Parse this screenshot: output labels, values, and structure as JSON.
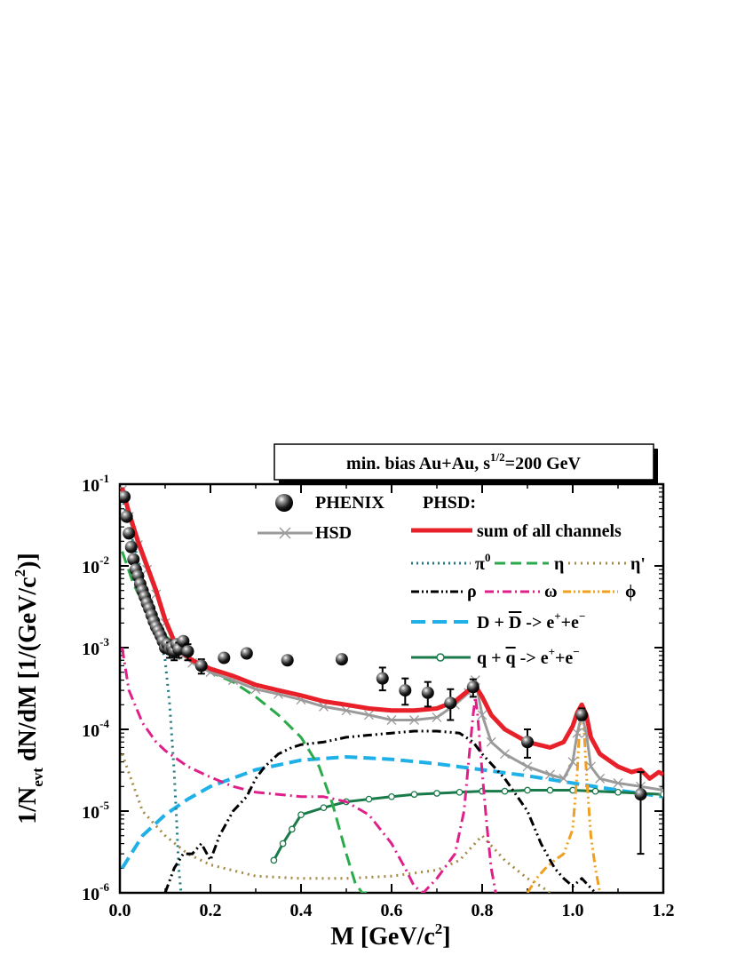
{
  "chart_data": {
    "type": "line",
    "title": "min. bias Au+Au,  s^1/2=200 GeV",
    "title_parts": {
      "pre": "min. bias Au+Au,  s",
      "sup": "1/2",
      "post": "=200 GeV"
    },
    "xlabel": "M  [GeV/c²]",
    "xlabel_parts": {
      "pre": "M  [GeV/c",
      "sup": "2",
      "post": "]"
    },
    "ylabel": "1/N_evt dN/dM  [1/(GeV/c²)]",
    "ylabel_parts": {
      "a": "1/N",
      "sub": "evt",
      "b": " dN/dM  [1/(GeV/c",
      "sup": "2",
      "c": ")]"
    },
    "xlim": [
      0.0,
      1.2
    ],
    "ylim": [
      1e-06,
      0.1
    ],
    "yscale": "log",
    "xticks": [
      "0.0",
      "0.2",
      "0.4",
      "0.6",
      "0.8",
      "1.0",
      "1.2"
    ],
    "yticks": [
      {
        "base": "10",
        "exp": "-1"
      },
      {
        "base": "10",
        "exp": "-2"
      },
      {
        "base": "10",
        "exp": "-3"
      },
      {
        "base": "10",
        "exp": "-4"
      },
      {
        "base": "10",
        "exp": "-5"
      },
      {
        "base": "10",
        "exp": "-6"
      }
    ],
    "grid": false,
    "legend_placement": "top-right",
    "legend": {
      "phenix": "PHENIX",
      "hsd": "HSD",
      "phsd_header": "PHSD:",
      "sum": "sum of all channels",
      "pi0": {
        "base": "π",
        "sup": "0"
      },
      "eta": "η",
      "etap": "η'",
      "rho": "ρ",
      "omega": "ω",
      "phi": "ϕ",
      "dd": {
        "a": "D + ",
        "bar": "D",
        "b": " -> e",
        "sup1": "+",
        "c": "+e",
        "sup2": "−"
      },
      "qq": {
        "a": "q + ",
        "bar": "q",
        "b": " -> e",
        "sup1": "+",
        "c": "+e",
        "sup2": "−"
      }
    },
    "series": [
      {
        "key": "sum",
        "name": "sum of all channels",
        "color": "#e8202a",
        "style": "solid",
        "width": 5,
        "x": [
          0.005,
          0.02,
          0.04,
          0.06,
          0.08,
          0.1,
          0.12,
          0.14,
          0.16,
          0.2,
          0.25,
          0.3,
          0.35,
          0.4,
          0.45,
          0.5,
          0.55,
          0.6,
          0.65,
          0.7,
          0.74,
          0.77,
          0.785,
          0.8,
          0.82,
          0.85,
          0.9,
          0.95,
          0.98,
          1.0,
          1.01,
          1.02,
          1.03,
          1.04,
          1.06,
          1.1,
          1.13,
          1.15,
          1.17,
          1.19,
          1.2
        ],
        "y": [
          0.09,
          0.045,
          0.02,
          0.01,
          0.005,
          0.0022,
          0.0012,
          0.00085,
          0.0007,
          0.00055,
          0.00045,
          0.00035,
          0.0003,
          0.00026,
          0.00022,
          0.0002,
          0.00018,
          0.00017,
          0.00017,
          0.00018,
          0.00022,
          0.0003,
          0.00034,
          0.00025,
          0.00015,
          0.0001,
          7e-05,
          6e-05,
          7e-05,
          0.00011,
          0.00016,
          0.0002,
          0.00015,
          8e-05,
          5e-05,
          3.5e-05,
          3e-05,
          3.2e-05,
          2.5e-05,
          3e-05,
          2.8e-05
        ]
      },
      {
        "key": "hsd",
        "name": "HSD",
        "color": "#9a9a9a",
        "style": "solid",
        "width": 3,
        "x": [
          0.005,
          0.02,
          0.04,
          0.06,
          0.08,
          0.1,
          0.12,
          0.14,
          0.16,
          0.2,
          0.25,
          0.3,
          0.35,
          0.4,
          0.45,
          0.5,
          0.55,
          0.6,
          0.65,
          0.7,
          0.74,
          0.77,
          0.785,
          0.8,
          0.82,
          0.85,
          0.9,
          0.95,
          0.98,
          1.0,
          1.01,
          1.02,
          1.03,
          1.04,
          1.06,
          1.1,
          1.15,
          1.2
        ],
        "y": [
          0.085,
          0.04,
          0.018,
          0.009,
          0.0045,
          0.002,
          0.0011,
          0.0008,
          0.00065,
          0.0005,
          0.0004,
          0.00031,
          0.00027,
          0.00023,
          0.00019,
          0.00017,
          0.00015,
          0.00013,
          0.00013,
          0.00014,
          0.0002,
          0.00028,
          0.0004,
          0.00015,
          7e-05,
          5e-05,
          3.5e-05,
          2.8e-05,
          2.5e-05,
          4e-05,
          9e-05,
          0.00015,
          9e-05,
          3.5e-05,
          2.5e-05,
          2.2e-05,
          2e-05,
          1.8e-05
        ]
      },
      {
        "key": "pi0",
        "name": "π0",
        "color": "#1f7a80",
        "style": "dotted",
        "width": 3,
        "x": [
          0.005,
          0.02,
          0.04,
          0.06,
          0.08,
          0.1,
          0.11,
          0.12,
          0.125,
          0.13,
          0.135
        ],
        "y": [
          0.07,
          0.03,
          0.012,
          0.005,
          0.002,
          0.0007,
          0.0002,
          3e-05,
          8e-06,
          2e-06,
          1e-06
        ]
      },
      {
        "key": "eta",
        "name": "η",
        "color": "#2aaa4a",
        "style": "dashed",
        "width": 3,
        "x": [
          0.005,
          0.03,
          0.06,
          0.1,
          0.15,
          0.2,
          0.25,
          0.3,
          0.35,
          0.4,
          0.44,
          0.47,
          0.5,
          0.52,
          0.535,
          0.545
        ],
        "y": [
          0.015,
          0.006,
          0.0028,
          0.0014,
          0.0008,
          0.0005,
          0.00038,
          0.00025,
          0.00015,
          8e-05,
          3.5e-05,
          1.2e-05,
          3e-06,
          1.3e-06,
          1e-06,
          1e-06
        ]
      },
      {
        "key": "etap",
        "name": "η'",
        "color": "#a58a45",
        "style": "dotted",
        "width": 3,
        "x": [
          0.005,
          0.05,
          0.1,
          0.15,
          0.2,
          0.3,
          0.4,
          0.5,
          0.6,
          0.7,
          0.75,
          0.8,
          0.85,
          0.9,
          0.93,
          0.95
        ],
        "y": [
          5e-05,
          1e-05,
          5e-06,
          3e-06,
          2.2e-06,
          1.6e-06,
          1.5e-06,
          1.5e-06,
          1.6e-06,
          1.9e-06,
          2.5e-06,
          5e-06,
          2.5e-06,
          1.5e-06,
          1.2e-06,
          1e-06
        ]
      },
      {
        "key": "rho",
        "name": "ρ",
        "color": "#000000",
        "style": "dashdotdot",
        "width": 3,
        "x": [
          0.1,
          0.12,
          0.14,
          0.16,
          0.18,
          0.2,
          0.22,
          0.25,
          0.28,
          0.3,
          0.32,
          0.35,
          0.38,
          0.4,
          0.45,
          0.5,
          0.55,
          0.6,
          0.65,
          0.7,
          0.75,
          0.78,
          0.8,
          0.85,
          0.9,
          0.93,
          0.96,
          0.98,
          1.0,
          1.02,
          1.05
        ],
        "y": [
          1e-06,
          2e-06,
          3e-06,
          3e-06,
          4e-06,
          2.5e-06,
          5e-06,
          1e-05,
          1.5e-05,
          2.5e-05,
          3.5e-05,
          5e-05,
          6e-05,
          6.5e-05,
          7e-05,
          8e-05,
          8.5e-05,
          9e-05,
          9.5e-05,
          9.5e-05,
          9e-05,
          7e-05,
          5e-05,
          2.5e-05,
          1e-05,
          4e-06,
          2e-06,
          1.5e-06,
          1.2e-06,
          1.5e-06,
          1e-06
        ]
      },
      {
        "key": "omega",
        "name": "ω",
        "color": "#e0208a",
        "style": "dashdot",
        "width": 3,
        "x": [
          0.005,
          0.02,
          0.05,
          0.08,
          0.1,
          0.15,
          0.2,
          0.25,
          0.3,
          0.35,
          0.4,
          0.45,
          0.5,
          0.55,
          0.6,
          0.63,
          0.65,
          0.67,
          0.7,
          0.74,
          0.76,
          0.77,
          0.78,
          0.785,
          0.79,
          0.8,
          0.81,
          0.82,
          0.83
        ],
        "y": [
          0.001,
          0.0003,
          0.00012,
          7e-05,
          5.5e-05,
          3.5e-05,
          2.6e-05,
          2e-05,
          1.7e-05,
          1.6e-05,
          1.5e-05,
          1.5e-05,
          1.3e-05,
          9e-06,
          4e-06,
          2e-06,
          1.2e-06,
          1e-06,
          1.5e-06,
          3e-06,
          1e-05,
          4e-05,
          0.00015,
          0.00025,
          0.00015,
          3e-05,
          7e-06,
          2e-06,
          1e-06
        ]
      },
      {
        "key": "phi",
        "name": "ϕ",
        "color": "#f0a020",
        "style": "dashdotdot",
        "width": 3,
        "x": [
          0.9,
          0.92,
          0.94,
          0.96,
          0.98,
          1.0,
          1.01,
          1.015,
          1.02,
          1.025,
          1.03,
          1.04,
          1.05,
          1.06
        ],
        "y": [
          1e-06,
          1.5e-06,
          2e-06,
          2.5e-06,
          3e-06,
          6e-06,
          3e-05,
          0.0001,
          0.00018,
          0.0001,
          3e-05,
          5e-06,
          2e-06,
          1e-06
        ]
      },
      {
        "key": "dd",
        "name": "D + D -> e+e-",
        "color": "#20b0e8",
        "style": "dashed",
        "width": 4,
        "x": [
          0.005,
          0.05,
          0.1,
          0.15,
          0.2,
          0.3,
          0.4,
          0.5,
          0.6,
          0.7,
          0.8,
          0.9,
          1.0,
          1.1,
          1.2
        ],
        "y": [
          2e-06,
          5e-06,
          9e-06,
          1.4e-05,
          2e-05,
          3.2e-05,
          4.2e-05,
          4.6e-05,
          4.3e-05,
          3.8e-05,
          3.2e-05,
          2.7e-05,
          2.2e-05,
          1.8e-05,
          1.5e-05
        ]
      },
      {
        "key": "qq",
        "name": "q + q -> e+e-",
        "color": "#1a7a4a",
        "style": "solid-markers",
        "width": 3,
        "x": [
          0.34,
          0.36,
          0.38,
          0.4,
          0.45,
          0.5,
          0.55,
          0.6,
          0.65,
          0.7,
          0.75,
          0.8,
          0.85,
          0.9,
          0.95,
          1.0,
          1.05,
          1.1,
          1.15,
          1.2
        ],
        "y": [
          2.5e-06,
          4e-06,
          6e-06,
          9e-06,
          1.1e-05,
          1.3e-05,
          1.4e-05,
          1.5e-05,
          1.6e-05,
          1.65e-05,
          1.7e-05,
          1.75e-05,
          1.75e-05,
          1.8e-05,
          1.8e-05,
          1.8e-05,
          1.75e-05,
          1.7e-05,
          1.65e-05,
          1.6e-05
        ]
      }
    ],
    "phenix_data": {
      "x": [
        0.01,
        0.015,
        0.02,
        0.025,
        0.03,
        0.035,
        0.04,
        0.045,
        0.05,
        0.055,
        0.06,
        0.065,
        0.07,
        0.075,
        0.08,
        0.085,
        0.09,
        0.095,
        0.1,
        0.105,
        0.11,
        0.115,
        0.12,
        0.125,
        0.13,
        0.14,
        0.15,
        0.18,
        0.23,
        0.28,
        0.37,
        0.49,
        0.58,
        0.63,
        0.68,
        0.73,
        0.78,
        0.9,
        1.02,
        1.15
      ],
      "y": [
        0.07,
        0.04,
        0.025,
        0.017,
        0.012,
        0.009,
        0.0075,
        0.006,
        0.005,
        0.0042,
        0.0035,
        0.003,
        0.0025,
        0.0021,
        0.0018,
        0.0016,
        0.0014,
        0.0012,
        0.001,
        0.0011,
        0.00095,
        0.001,
        0.0009,
        0.0011,
        0.00095,
        0.0012,
        0.0009,
        0.0006,
        0.00075,
        0.00085,
        0.0007,
        0.00072,
        0.00042,
        0.0003,
        0.00028,
        0.00021,
        0.00033,
        7e-05,
        0.00015,
        1.6e-05
      ],
      "err_lo": [
        0,
        0,
        0,
        0,
        0,
        0,
        0,
        0,
        0,
        0,
        0,
        0,
        0,
        0,
        0,
        0,
        0,
        0,
        0,
        0,
        0.0002,
        0,
        0.0002,
        0,
        0.0002,
        0,
        0.0002,
        0.00012,
        0,
        0,
        0,
        0,
        0.00012,
        0.0001,
        9e-05,
        8e-05,
        8e-05,
        2.5e-05,
        2e-05,
        1.3e-05
      ],
      "err_hi": [
        0,
        0,
        0,
        0,
        0,
        0,
        0,
        0,
        0,
        0,
        0,
        0,
        0,
        0,
        0,
        0,
        0,
        0,
        0,
        0,
        0.0002,
        0,
        0.0002,
        0,
        0.0002,
        0,
        0.0002,
        0.00012,
        0,
        0,
        0,
        0,
        0.00015,
        0.00012,
        0.0001,
        0.0001,
        8e-05,
        3e-05,
        3e-05,
        1.4e-05
      ]
    }
  }
}
